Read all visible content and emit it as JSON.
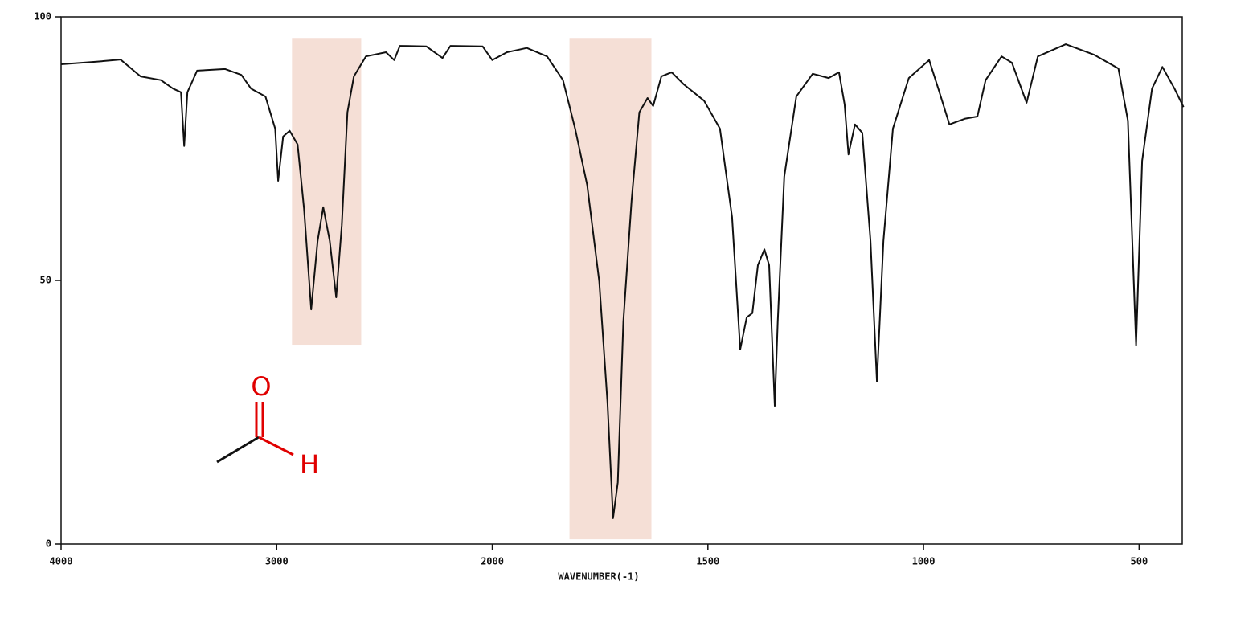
{
  "chart_data": {
    "type": "line",
    "xlabel": "WAVENUMBER(-1)",
    "x": [
      4000,
      3836,
      3724,
      3631,
      3537,
      3481,
      3444,
      3429,
      3414,
      3369,
      3239,
      3164,
      3119,
      3052,
      3007,
      2993,
      2970,
      2940,
      2903,
      2873,
      2840,
      2810,
      2784,
      2754,
      2724,
      2698,
      2672,
      2642,
      2586,
      2493,
      2455,
      2429,
      2306,
      2231,
      2194,
      2045,
      2000,
      1966,
      1920,
      1873,
      1836,
      1808,
      1780,
      1752,
      1733,
      1720,
      1709,
      1696,
      1677,
      1659,
      1640,
      1627,
      1608,
      1584,
      1556,
      1509,
      1472,
      1444,
      1425,
      1410,
      1397,
      1384,
      1369,
      1358,
      1345,
      1338,
      1323,
      1295,
      1257,
      1220,
      1196,
      1183,
      1174,
      1159,
      1142,
      1123,
      1108,
      1093,
      1071,
      1034,
      987,
      963,
      940,
      903,
      875,
      856,
      819,
      795,
      761,
      735,
      670,
      604,
      548,
      526,
      507,
      493,
      470,
      446,
      418,
      397
    ],
    "values": [
      91.0,
      91.5,
      91.9,
      88.7,
      88.0,
      86.4,
      85.7,
      75.5,
      85.7,
      89.8,
      90.1,
      89.0,
      86.4,
      84.9,
      78.8,
      68.9,
      77.3,
      78.4,
      75.8,
      63.6,
      44.5,
      57.5,
      63.9,
      57.5,
      46.8,
      60.5,
      81.9,
      88.7,
      92.5,
      93.3,
      91.8,
      94.5,
      94.4,
      92.2,
      94.5,
      94.4,
      91.8,
      93.3,
      94.1,
      92.5,
      88.0,
      78.8,
      68.1,
      49.8,
      27.0,
      4.9,
      11.7,
      42.2,
      65.1,
      81.9,
      84.6,
      83.1,
      88.7,
      89.5,
      87.2,
      84.1,
      78.8,
      62.0,
      36.9,
      43.0,
      43.8,
      52.9,
      55.9,
      52.9,
      26.2,
      42.2,
      69.7,
      84.9,
      89.2,
      88.4,
      89.5,
      83.4,
      73.9,
      79.6,
      78.0,
      57.5,
      30.8,
      57.5,
      78.8,
      88.4,
      91.8,
      85.7,
      79.6,
      80.7,
      81.1,
      88.0,
      92.5,
      91.3,
      83.7,
      92.5,
      94.8,
      92.8,
      90.2,
      80.3,
      37.7,
      72.7,
      86.4,
      90.5,
      86.4,
      82.9
    ],
    "color": "#111111",
    "xlim": [
      4000,
      400
    ],
    "xticks": [
      4000,
      3000,
      2000,
      1500,
      1000,
      500
    ],
    "x_scale_change": 2000,
    "ylim": [
      0,
      100
    ],
    "yticks": [
      0,
      50,
      100
    ],
    "highlight_color": "#f5dfd6",
    "highlight_regions": [
      {
        "x": [
          2929,
          2608
        ],
        "y": [
          37.8,
          96
        ]
      },
      {
        "x": [
          1821,
          1631
        ],
        "y": [
          0.9,
          96
        ]
      }
    ],
    "structure_labels": [
      "O",
      "H"
    ]
  }
}
